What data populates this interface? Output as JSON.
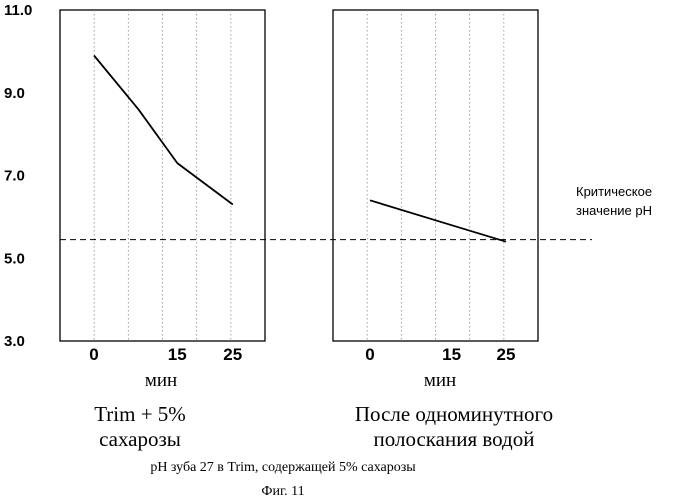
{
  "chart_data": [
    {
      "type": "line",
      "title": "Trim + 5% сахарозы",
      "xlabel": "мин",
      "x": [
        0,
        8,
        15,
        25
      ],
      "x_ticks": [
        "0",
        "15",
        "25"
      ],
      "y": [
        9.9,
        8.6,
        7.3,
        6.3
      ],
      "ylim": [
        3.0,
        11.0
      ],
      "y_ticks": [
        "11.0",
        "9.0",
        "7.0",
        "5.0",
        "3.0"
      ],
      "grid": true
    },
    {
      "type": "line",
      "title": "После одноминутного полоскания водой",
      "xlabel": "мин",
      "x": [
        0,
        15,
        25
      ],
      "x_ticks": [
        "0",
        "15",
        "25"
      ],
      "y": [
        6.4,
        5.8,
        5.4
      ],
      "ylim": [
        3.0,
        11.0
      ],
      "grid": true
    }
  ],
  "threshold": {
    "label_line1": "Критическое",
    "label_line2": "значение pH",
    "value": 5.45
  },
  "panel1": {
    "xlabel": "мин",
    "subtitle_line1": "Trim + 5%",
    "subtitle_line2": "сахарозы"
  },
  "panel2": {
    "xlabel": "мин",
    "subtitle_line1": "После  одноминутного",
    "subtitle_line2": "полоскания водой"
  },
  "caption": "pH зуба 27 в Trim, содержащей 5% сахарозы",
  "figure_label": "Фиг. 11"
}
